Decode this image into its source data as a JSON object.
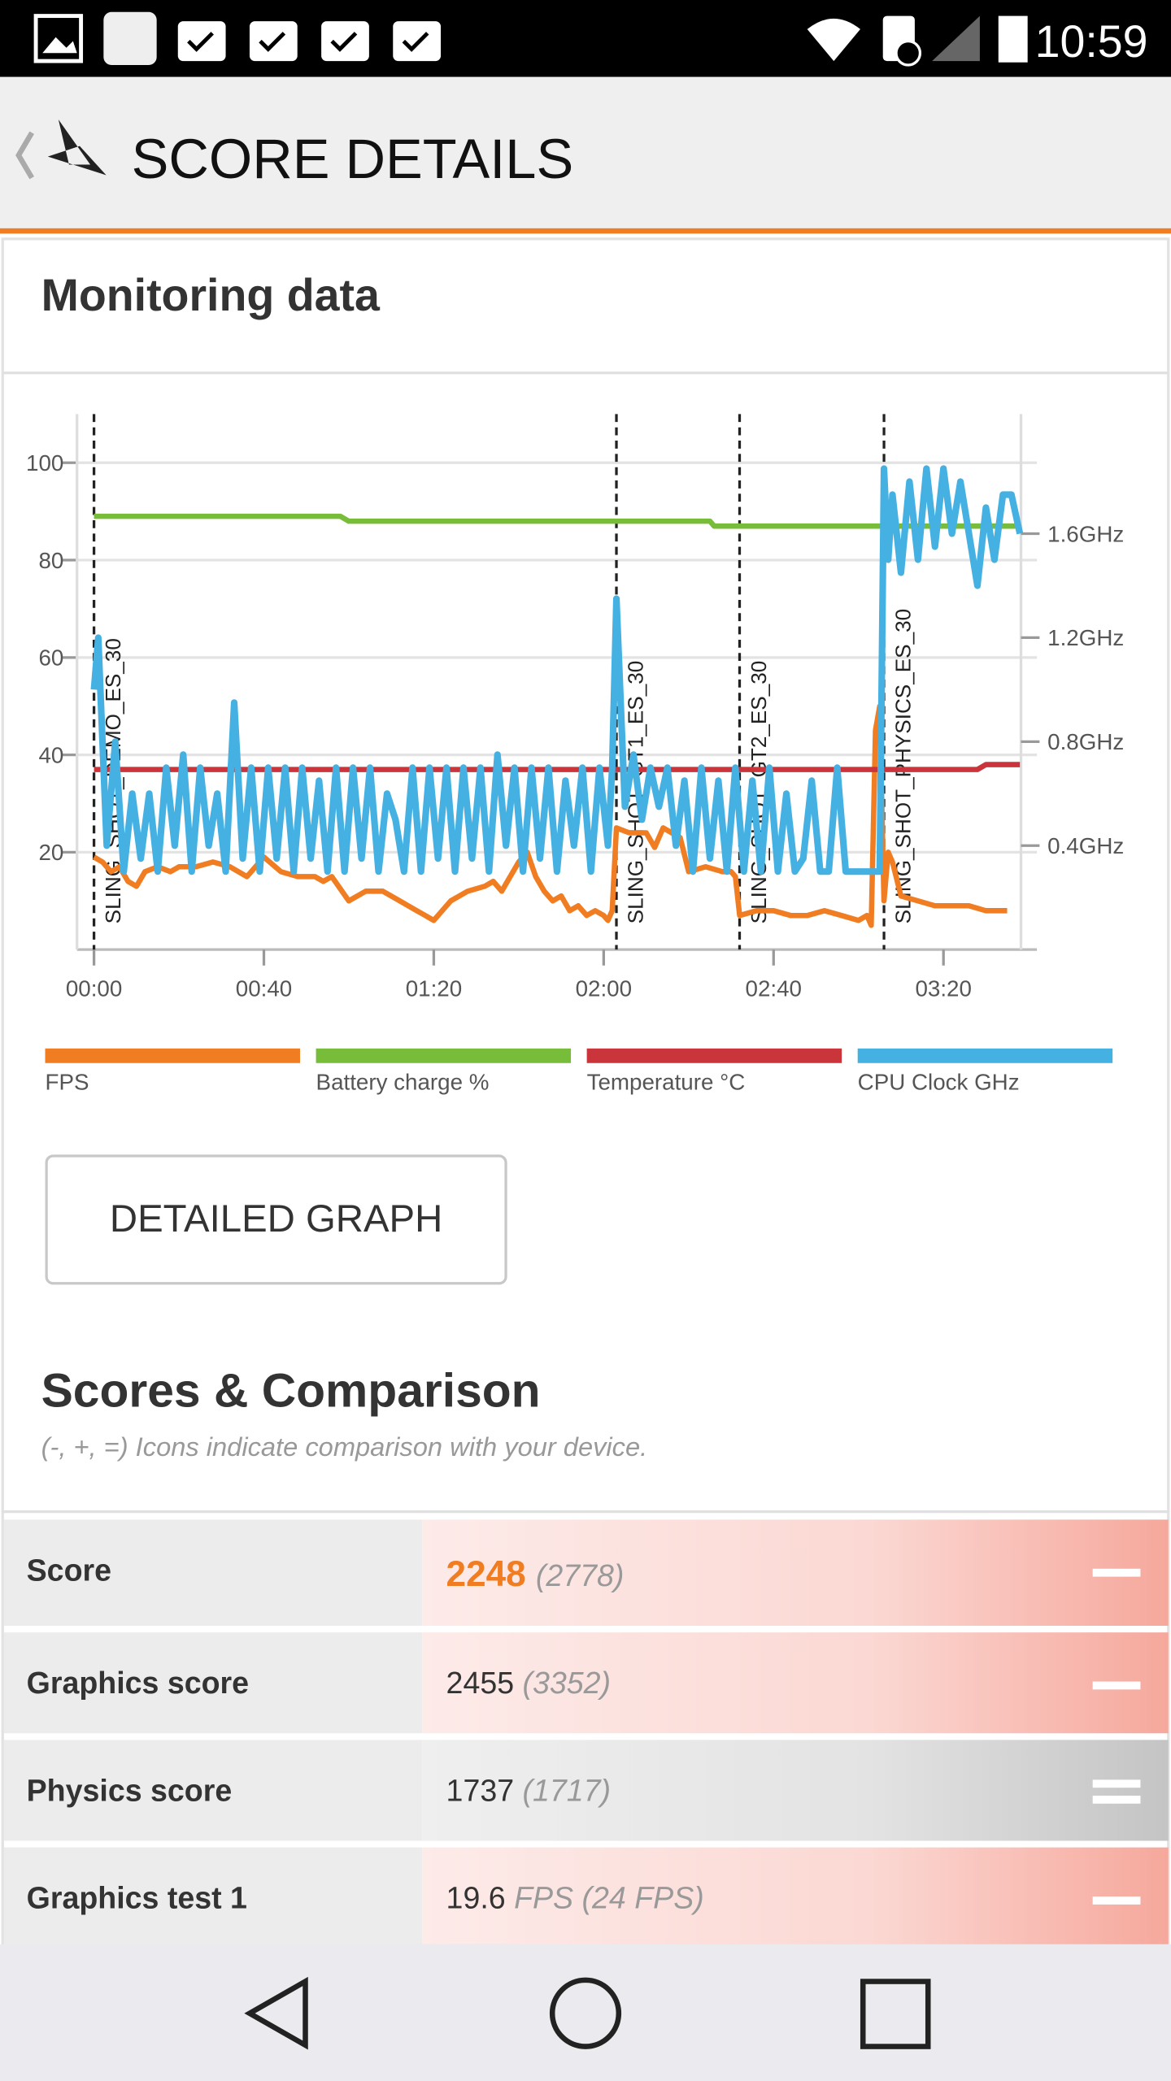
{
  "status_bar": {
    "time": "10:59"
  },
  "header": {
    "title": "SCORE DETAILS"
  },
  "monitoring": {
    "title": "Monitoring data"
  },
  "chart_data": {
    "type": "line",
    "xlim": [
      -4,
      222
    ],
    "ylim": [
      0,
      110
    ],
    "y2lim": [
      0,
      2.06
    ],
    "xticks": [
      {
        "value": 0,
        "label": "00:00"
      },
      {
        "value": 40,
        "label": "00:40"
      },
      {
        "value": 80,
        "label": "01:20"
      },
      {
        "value": 120,
        "label": "02:00"
      },
      {
        "value": 160,
        "label": "02:40"
      },
      {
        "value": 200,
        "label": "03:20"
      }
    ],
    "yticks": [
      20,
      40,
      60,
      80,
      100
    ],
    "y2ticks": [
      {
        "value": 0.4,
        "label": "0.4GHz"
      },
      {
        "value": 0.8,
        "label": "0.8GHz"
      },
      {
        "value": 1.2,
        "label": "1.2GHz"
      },
      {
        "value": 1.6,
        "label": "1.6GHz"
      }
    ],
    "grid": true,
    "markers": [
      {
        "x": 0,
        "label": "SLING_SHOT_DEMO_ES_30"
      },
      {
        "x": 123,
        "label": "SLING_SHOT_GT1_ES_30"
      },
      {
        "x": 152,
        "label": "SLING_SHOT_GT2_ES_30"
      },
      {
        "x": 186,
        "label": "SLING_SHOT_PHYSICS_ES_30"
      }
    ],
    "series": [
      {
        "name": "FPS",
        "color": "#f07d22",
        "x": [
          0,
          2,
          4,
          6,
          8,
          10,
          12,
          15,
          18,
          20,
          24,
          28,
          32,
          36,
          40,
          44,
          48,
          52,
          54,
          56,
          60,
          64,
          68,
          72,
          74,
          76,
          78,
          80,
          84,
          88,
          92,
          94,
          96,
          100,
          102,
          104,
          106,
          108,
          110,
          112,
          114,
          116,
          118,
          120,
          121,
          122,
          123,
          126,
          130,
          132,
          134,
          136,
          138,
          140,
          144,
          148,
          150,
          151,
          152,
          156,
          160,
          164,
          168,
          172,
          176,
          180,
          182,
          183,
          184,
          185,
          186,
          187,
          188,
          190,
          194,
          198,
          202,
          206,
          210,
          214,
          215
        ],
        "values": [
          19,
          18,
          16,
          17,
          14,
          13,
          16,
          17,
          16,
          17,
          17,
          18,
          17,
          15,
          19,
          16,
          15,
          15,
          14,
          15,
          10,
          12,
          12,
          10,
          9,
          8,
          7,
          6,
          10,
          12,
          13,
          14,
          12,
          18,
          20,
          15,
          12,
          10,
          11,
          8,
          9,
          7,
          8,
          7,
          6,
          8,
          25,
          24,
          24,
          21,
          25,
          24,
          23,
          16,
          17,
          16,
          16,
          15,
          7,
          8,
          8,
          7,
          7,
          8,
          7,
          6,
          7,
          5,
          45,
          50,
          10,
          20,
          18,
          11,
          10,
          9,
          9,
          9,
          8,
          8,
          8
        ]
      },
      {
        "name": "Battery charge %",
        "color": "#78bd3a",
        "x": [
          0,
          58,
          60,
          145,
          146,
          218
        ],
        "values": [
          89,
          89,
          88,
          88,
          87,
          87
        ]
      },
      {
        "name": "Temperature °C",
        "color": "#c9353a",
        "x": [
          0,
          208,
          210,
          218
        ],
        "values": [
          37,
          37,
          38,
          38
        ]
      },
      {
        "name": "CPU Clock GHz",
        "color": "#45b1e3",
        "axis": "y2",
        "x": [
          0,
          1,
          3,
          5,
          7,
          9,
          11,
          13,
          15,
          17,
          19,
          21,
          23,
          25,
          27,
          29,
          31,
          33,
          35,
          37,
          39,
          41,
          43,
          45,
          47,
          49,
          51,
          53,
          55,
          57,
          59,
          61,
          63,
          65,
          67,
          69,
          71,
          73,
          75,
          77,
          79,
          81,
          83,
          85,
          87,
          89,
          91,
          93,
          95,
          97,
          99,
          101,
          103,
          105,
          107,
          109,
          111,
          113,
          115,
          117,
          119,
          121,
          122,
          123,
          125,
          127,
          129,
          131,
          133,
          135,
          137,
          139,
          141,
          143,
          145,
          147,
          149,
          151,
          153,
          155,
          157,
          159,
          161,
          163,
          165,
          167,
          169,
          171,
          173,
          175,
          177,
          179,
          181,
          183,
          185,
          186,
          187,
          188,
          190,
          192,
          194,
          196,
          198,
          200,
          202,
          204,
          206,
          208,
          210,
          212,
          214,
          216,
          218
        ],
        "values": [
          1.0,
          1.2,
          0.4,
          0.8,
          0.3,
          0.6,
          0.35,
          0.6,
          0.3,
          0.7,
          0.4,
          0.75,
          0.3,
          0.7,
          0.4,
          0.6,
          0.3,
          0.95,
          0.35,
          0.7,
          0.3,
          0.7,
          0.35,
          0.7,
          0.3,
          0.7,
          0.35,
          0.65,
          0.3,
          0.7,
          0.3,
          0.7,
          0.35,
          0.7,
          0.3,
          0.6,
          0.5,
          0.3,
          0.7,
          0.3,
          0.7,
          0.35,
          0.7,
          0.3,
          0.7,
          0.35,
          0.7,
          0.3,
          0.75,
          0.4,
          0.7,
          0.3,
          0.7,
          0.35,
          0.7,
          0.3,
          0.65,
          0.4,
          0.7,
          0.3,
          0.7,
          0.4,
          0.7,
          1.35,
          0.55,
          0.75,
          0.5,
          0.7,
          0.55,
          0.7,
          0.4,
          0.65,
          0.3,
          0.7,
          0.35,
          0.65,
          0.3,
          0.7,
          0.3,
          0.65,
          0.3,
          0.7,
          0.3,
          0.6,
          0.3,
          0.35,
          0.65,
          0.3,
          0.3,
          0.7,
          0.3,
          0.3,
          0.3,
          0.3,
          0.3,
          1.85,
          1.5,
          1.75,
          1.45,
          1.8,
          1.5,
          1.85,
          1.55,
          1.85,
          1.6,
          1.8,
          1.6,
          1.4,
          1.7,
          1.5,
          1.75,
          1.75,
          1.6
        ]
      }
    ]
  },
  "detailed_graph_button": "DETAILED GRAPH",
  "scores": {
    "title": "Scores & Comparison",
    "subtitle": "(-, +, =) Icons indicate comparison with your device.",
    "rows": [
      {
        "label": "Score",
        "value": 2248,
        "comparison": "(2778)"
      },
      {
        "label": "Graphics score",
        "value": 2455,
        "comparison": "(3352)"
      },
      {
        "label": "Physics score",
        "value": 1737,
        "comparison": "(1717)"
      },
      {
        "label": "Graphics test 1",
        "value": 19.6,
        "comparison": "FPS (24 FPS)"
      }
    ]
  }
}
